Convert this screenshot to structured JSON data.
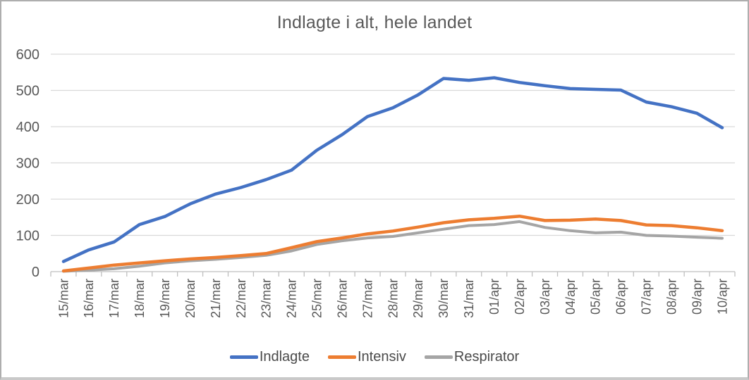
{
  "chart_title": "Indlagte i alt, hele landet",
  "chart_data": {
    "type": "line",
    "title": "Indlagte i alt, hele landet",
    "categories": [
      "15/mar",
      "16/mar",
      "17/mar",
      "18/mar",
      "19/mar",
      "20/mar",
      "21/mar",
      "22/mar",
      "23/mar",
      "24/mar",
      "25/mar",
      "26/mar",
      "27/mar",
      "28/mar",
      "29/mar",
      "30/mar",
      "31/mar",
      "01/apr",
      "02/apr",
      "03/apr",
      "04/apr",
      "05/apr",
      "06/apr",
      "07/apr",
      "08/apr",
      "09/apr",
      "10/apr"
    ],
    "series": [
      {
        "name": "Indlagte",
        "color": "#4472C4",
        "values": [
          28,
          60,
          82,
          130,
          152,
          187,
          214,
          232,
          254,
          280,
          335,
          378,
          428,
          452,
          488,
          533,
          528,
          535,
          522,
          513,
          505,
          503,
          501,
          468,
          455,
          437,
          397
        ]
      },
      {
        "name": "Intensiv",
        "color": "#ED7D31",
        "values": [
          2,
          10,
          18,
          24,
          30,
          35,
          39,
          44,
          50,
          66,
          83,
          93,
          104,
          112,
          123,
          135,
          143,
          147,
          153,
          141,
          142,
          145,
          141,
          129,
          127,
          121,
          113
        ]
      },
      {
        "name": "Respirator",
        "color": "#A5A5A5",
        "values": [
          1,
          4,
          8,
          15,
          24,
          30,
          34,
          39,
          45,
          57,
          75,
          85,
          93,
          97,
          107,
          117,
          127,
          130,
          138,
          122,
          113,
          107,
          109,
          100,
          98,
          95,
          92
        ]
      }
    ],
    "ylim": [
      0,
      600
    ],
    "yticks": [
      0,
      100,
      200,
      300,
      400,
      500,
      600
    ],
    "grid": true,
    "legend_position": "bottom",
    "colors": {
      "gridline": "#D9D9D9",
      "axis": "#BFBFBF",
      "tick": "#BFBFBF",
      "axis_label": "#595959",
      "title": "#595959"
    }
  }
}
